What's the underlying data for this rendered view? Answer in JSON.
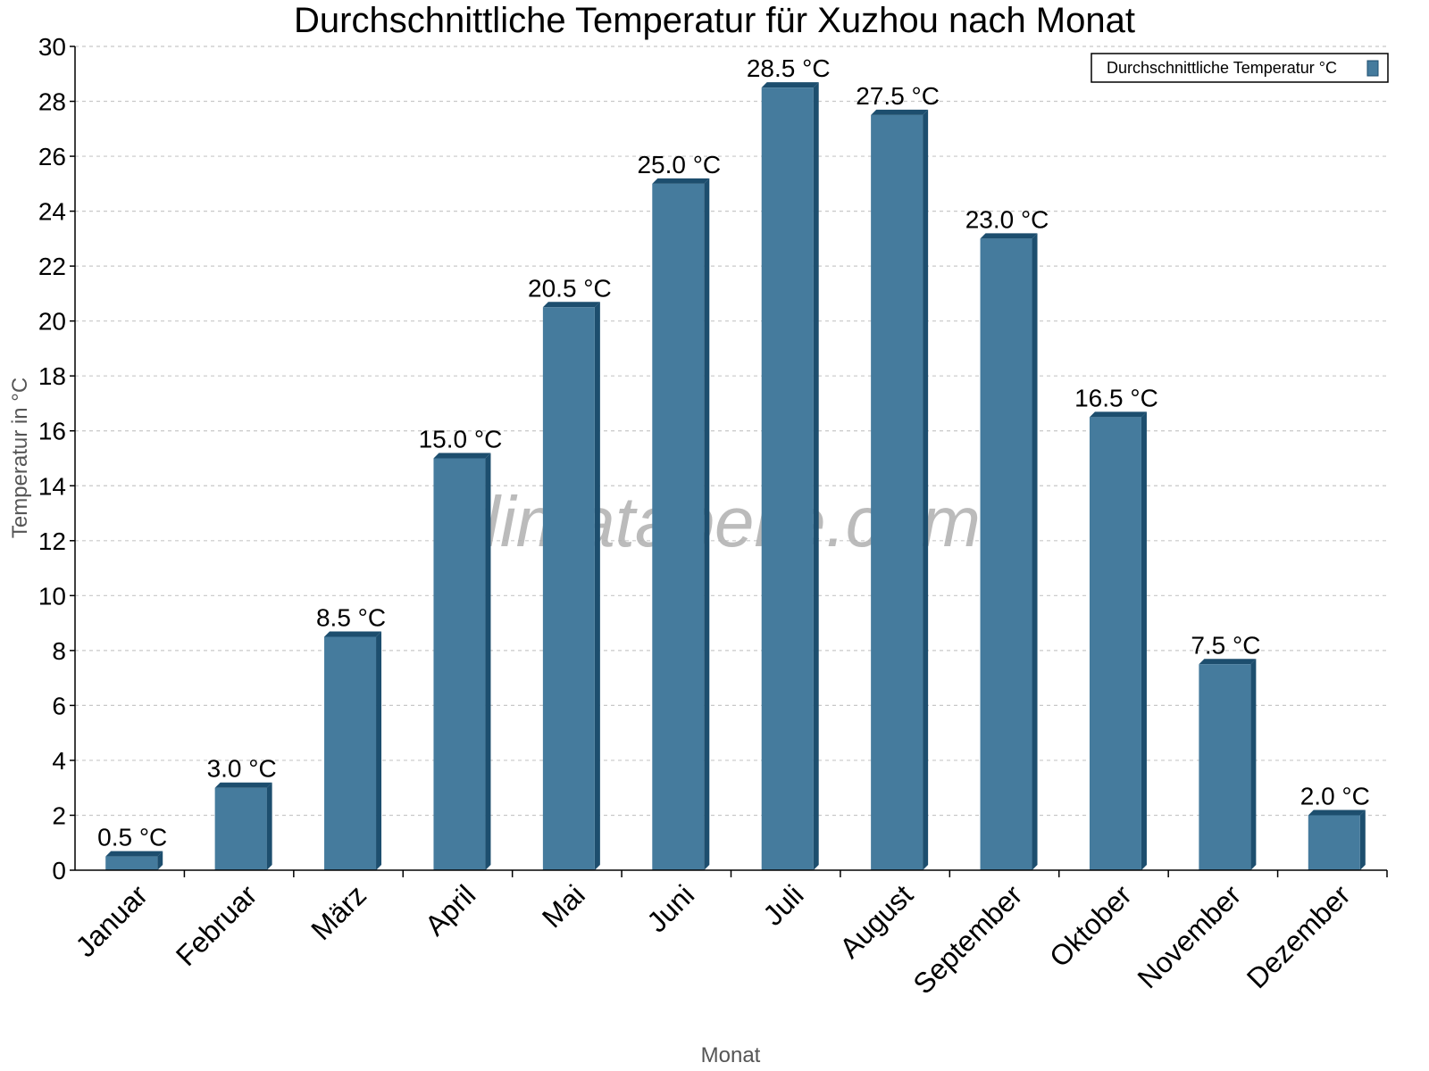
{
  "chart_data": {
    "type": "bar",
    "title": "Durchschnittliche Temperatur für Xuzhou nach Monat",
    "xlabel": "Monat",
    "ylabel": "Temperatur in °C",
    "categories": [
      "Januar",
      "Februar",
      "März",
      "April",
      "Mai",
      "Juni",
      "Juli",
      "August",
      "September",
      "Oktober",
      "November",
      "Dezember"
    ],
    "series": [
      {
        "name": "Durchschnittliche Temperatur °C",
        "values": [
          0.5,
          3.0,
          8.5,
          15.0,
          20.5,
          25.0,
          28.5,
          27.5,
          23.0,
          16.5,
          7.5,
          2.0
        ]
      }
    ],
    "value_labels": [
      "0.5 °C",
      "3.0 °C",
      "8.5 °C",
      "15.0 °C",
      "20.5 °C",
      "25.0 °C",
      "28.5 °C",
      "27.5 °C",
      "23.0 °C",
      "16.5 °C",
      "7.5 °C",
      "2.0 °C"
    ],
    "ylim": [
      0,
      30
    ],
    "yticks": [
      0,
      2,
      4,
      6,
      8,
      10,
      12,
      14,
      16,
      18,
      20,
      22,
      24,
      26,
      28,
      30
    ],
    "grid": true,
    "legend_position": "top-right",
    "watermark": "klimatabelle.com",
    "colors": {
      "bar_front": "#457b9d",
      "bar_side": "#1d4e6e",
      "grid": "#c8c8c8"
    }
  }
}
